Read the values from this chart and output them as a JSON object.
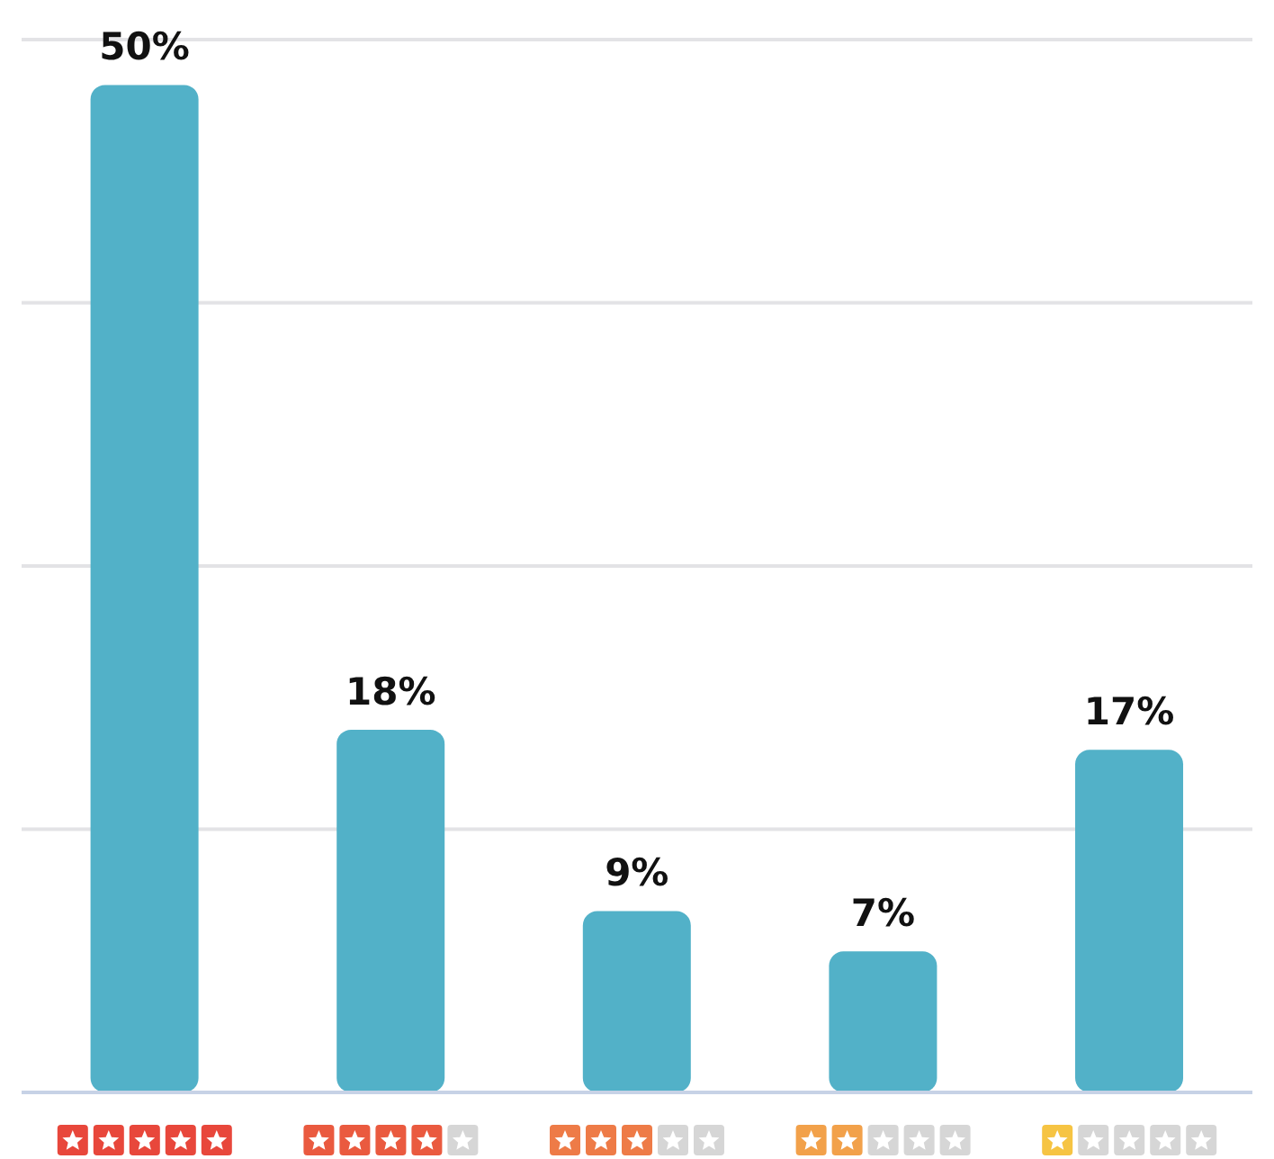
{
  "chart_data": {
    "type": "bar",
    "categories": [
      null,
      null,
      null,
      null,
      null
    ],
    "values": [
      50,
      18,
      9,
      7,
      17
    ],
    "value_labels": [
      "50%",
      "18%",
      "9%",
      "7%",
      "17%"
    ],
    "color": "#52b1c8",
    "grid": "y",
    "tick_labels": false
  }
}
